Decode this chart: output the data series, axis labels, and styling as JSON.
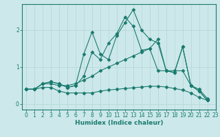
{
  "xlabel": "Humidex (Indice chaleur)",
  "bg_color": "#cce8ea",
  "line_color": "#1a7a6e",
  "grid_color": "#b8d8da",
  "xlim": [
    -0.5,
    23
  ],
  "ylim": [
    -0.15,
    2.7
  ],
  "yticks": [
    0,
    1,
    2
  ],
  "xticks": [
    0,
    1,
    2,
    3,
    4,
    5,
    6,
    7,
    8,
    9,
    10,
    11,
    12,
    13,
    14,
    15,
    16,
    17,
    18,
    19,
    20,
    21,
    22,
    23
  ],
  "lines": [
    {
      "x": [
        0,
        1,
        2,
        3,
        4,
        5,
        6,
        7,
        8,
        9,
        10,
        11,
        12,
        13,
        14,
        15,
        16,
        17,
        18,
        19,
        20,
        21,
        22
      ],
      "y": [
        0.4,
        0.4,
        0.55,
        0.6,
        0.55,
        0.45,
        0.5,
        1.35,
        1.95,
        1.35,
        1.2,
        1.85,
        2.2,
        2.55,
        2.0,
        1.75,
        1.65,
        0.9,
        0.85,
        1.55,
        0.5,
        0.35,
        0.1
      ]
    },
    {
      "x": [
        0,
        1,
        2,
        3,
        4,
        5,
        6,
        7,
        8,
        9,
        10,
        11,
        12,
        13,
        14,
        15,
        16,
        17,
        18,
        19,
        20,
        21,
        22
      ],
      "y": [
        0.4,
        0.4,
        0.55,
        0.6,
        0.55,
        0.45,
        0.5,
        0.75,
        1.4,
        1.2,
        1.65,
        1.9,
        2.35,
        2.1,
        1.45,
        1.5,
        1.75,
        0.9,
        0.85,
        1.55,
        0.5,
        0.35,
        0.1
      ]
    },
    {
      "x": [
        0,
        1,
        2,
        3,
        4,
        5,
        6,
        7,
        8,
        9,
        10,
        11,
        12,
        13,
        14,
        15,
        16,
        17,
        18,
        19,
        20,
        21,
        22
      ],
      "y": [
        0.4,
        0.4,
        0.55,
        0.55,
        0.5,
        0.5,
        0.55,
        0.65,
        0.75,
        0.9,
        1.0,
        1.1,
        1.2,
        1.3,
        1.4,
        1.5,
        0.9,
        0.9,
        0.9,
        0.9,
        0.5,
        0.4,
        0.15
      ]
    },
    {
      "x": [
        0,
        1,
        2,
        3,
        4,
        5,
        6,
        7,
        8,
        9,
        10,
        11,
        12,
        13,
        14,
        15,
        16,
        17,
        18,
        19,
        20,
        21,
        22
      ],
      "y": [
        0.4,
        0.4,
        0.45,
        0.45,
        0.35,
        0.3,
        0.3,
        0.3,
        0.3,
        0.35,
        0.38,
        0.4,
        0.42,
        0.44,
        0.46,
        0.48,
        0.48,
        0.46,
        0.42,
        0.38,
        0.3,
        0.18,
        0.1
      ]
    }
  ]
}
